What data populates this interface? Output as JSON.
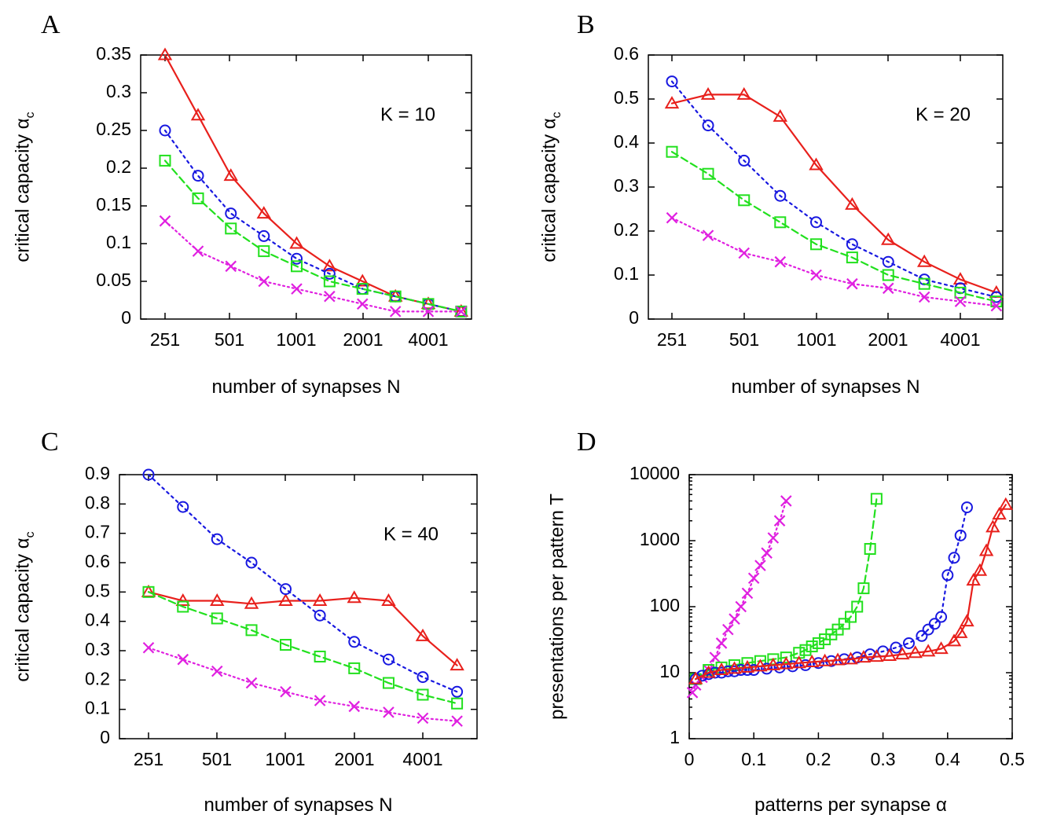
{
  "chart_data": [
    {
      "panel": "A",
      "type": "line",
      "annotation": "K = 10",
      "xlabel": "number of synapses N",
      "ylabel": "critical capacity α",
      "ylabel_sub": "c",
      "x_ticks": [
        "251",
        "501",
        "1001",
        "2001",
        "4001"
      ],
      "y_ticks": [
        "0",
        "0.05",
        "0.1",
        "0.15",
        "0.2",
        "0.25",
        "0.3",
        "0.35"
      ],
      "x": [
        251,
        355,
        501,
        709,
        1001,
        1415,
        2001,
        2831,
        4001,
        5657
      ],
      "ylim": [
        0,
        0.35
      ],
      "series": [
        {
          "color": "#e8201c",
          "marker": "triangle",
          "values": [
            0.35,
            0.27,
            0.19,
            0.14,
            0.1,
            0.07,
            0.05,
            0.03,
            0.02,
            0.01
          ]
        },
        {
          "color": "#1818e0",
          "marker": "circle",
          "values": [
            0.25,
            0.19,
            0.14,
            0.11,
            0.08,
            0.06,
            0.04,
            0.03,
            0.02,
            0.01
          ]
        },
        {
          "color": "#22e01e",
          "marker": "square",
          "values": [
            0.21,
            0.16,
            0.12,
            0.09,
            0.07,
            0.05,
            0.04,
            0.03,
            0.02,
            0.01
          ]
        },
        {
          "color": "#e020e0",
          "marker": "x",
          "values": [
            0.13,
            0.09,
            0.07,
            0.05,
            0.04,
            0.03,
            0.02,
            0.01,
            0.01,
            0.01
          ]
        }
      ]
    },
    {
      "panel": "B",
      "type": "line",
      "annotation": "K = 20",
      "xlabel": "number of synapses N",
      "ylabel": "critical capacity α",
      "ylabel_sub": "c",
      "x_ticks": [
        "251",
        "501",
        "1001",
        "2001",
        "4001"
      ],
      "y_ticks": [
        "0",
        "0.1",
        "0.2",
        "0.3",
        "0.4",
        "0.5",
        "0.6"
      ],
      "x": [
        251,
        355,
        501,
        709,
        1001,
        1415,
        2001,
        2831,
        4001,
        5657
      ],
      "ylim": [
        0,
        0.6
      ],
      "series": [
        {
          "color": "#e8201c",
          "marker": "triangle",
          "values": [
            0.49,
            0.51,
            0.51,
            0.46,
            0.35,
            0.26,
            0.18,
            0.13,
            0.09,
            0.06
          ]
        },
        {
          "color": "#1818e0",
          "marker": "circle",
          "values": [
            0.54,
            0.44,
            0.36,
            0.28,
            0.22,
            0.17,
            0.13,
            0.09,
            0.07,
            0.05
          ]
        },
        {
          "color": "#22e01e",
          "marker": "square",
          "values": [
            0.38,
            0.33,
            0.27,
            0.22,
            0.17,
            0.14,
            0.1,
            0.08,
            0.06,
            0.04
          ]
        },
        {
          "color": "#e020e0",
          "marker": "x",
          "values": [
            0.23,
            0.19,
            0.15,
            0.13,
            0.1,
            0.08,
            0.07,
            0.05,
            0.04,
            0.03
          ]
        }
      ]
    },
    {
      "panel": "C",
      "type": "line",
      "annotation": "K = 40",
      "xlabel": "number of synapses N",
      "ylabel": "critical capacity α",
      "ylabel_sub": "c",
      "x_ticks": [
        "251",
        "501",
        "1001",
        "2001",
        "4001"
      ],
      "y_ticks": [
        "0",
        "0.1",
        "0.2",
        "0.3",
        "0.4",
        "0.5",
        "0.6",
        "0.7",
        "0.8",
        "0.9"
      ],
      "x": [
        251,
        355,
        501,
        709,
        1001,
        1415,
        2001,
        2831,
        4001,
        5657
      ],
      "ylim": [
        0,
        0.9
      ],
      "series": [
        {
          "color": "#e8201c",
          "marker": "triangle",
          "values": [
            0.5,
            0.47,
            0.47,
            0.46,
            0.47,
            0.47,
            0.48,
            0.47,
            0.35,
            0.25
          ]
        },
        {
          "color": "#1818e0",
          "marker": "circle",
          "values": [
            0.9,
            0.79,
            0.68,
            0.6,
            0.51,
            0.42,
            0.33,
            0.27,
            0.21,
            0.16
          ]
        },
        {
          "color": "#22e01e",
          "marker": "square",
          "values": [
            0.5,
            0.45,
            0.41,
            0.37,
            0.32,
            0.28,
            0.24,
            0.19,
            0.15,
            0.12
          ]
        },
        {
          "color": "#e020e0",
          "marker": "x",
          "values": [
            0.31,
            0.27,
            0.23,
            0.19,
            0.16,
            0.13,
            0.11,
            0.09,
            0.07,
            0.06
          ]
        }
      ]
    },
    {
      "panel": "D",
      "type": "line",
      "yscale": "log",
      "xlabel": "patterns per synapse α",
      "ylabel": "presentations per pattern T",
      "x_ticks": [
        "0",
        "0.1",
        "0.2",
        "0.3",
        "0.4",
        "0.5"
      ],
      "y_ticks": [
        "1",
        "10",
        "100",
        "1000",
        "10000"
      ],
      "xlim": [
        0,
        0.5
      ],
      "ylim": [
        1,
        10000
      ],
      "series": [
        {
          "color": "#e020e0",
          "marker": "x",
          "x": [
            0.005,
            0.01,
            0.02,
            0.03,
            0.04,
            0.05,
            0.06,
            0.07,
            0.08,
            0.09,
            0.1,
            0.11,
            0.12,
            0.13,
            0.14,
            0.15
          ],
          "values": [
            5,
            6.5,
            8.5,
            11,
            17,
            28,
            45,
            65,
            100,
            160,
            270,
            420,
            650,
            1100,
            2000,
            4000
          ]
        },
        {
          "color": "#22e01e",
          "marker": "square",
          "x": [
            0.01,
            0.03,
            0.05,
            0.07,
            0.09,
            0.11,
            0.13,
            0.15,
            0.17,
            0.18,
            0.19,
            0.2,
            0.21,
            0.22,
            0.23,
            0.24,
            0.25,
            0.26,
            0.27,
            0.28,
            0.29
          ],
          "values": [
            8,
            11,
            12,
            13,
            14,
            15,
            16,
            17,
            20,
            22,
            25,
            28,
            32,
            38,
            45,
            55,
            70,
            100,
            190,
            750,
            4300
          ]
        },
        {
          "color": "#1818e0",
          "marker": "circle",
          "x": [
            0.01,
            0.02,
            0.03,
            0.04,
            0.05,
            0.06,
            0.07,
            0.08,
            0.09,
            0.1,
            0.12,
            0.14,
            0.16,
            0.18,
            0.2,
            0.22,
            0.24,
            0.26,
            0.28,
            0.3,
            0.32,
            0.34,
            0.36,
            0.37,
            0.38,
            0.39,
            0.4,
            0.41,
            0.42,
            0.43
          ],
          "values": [
            8,
            9,
            9.5,
            10,
            10,
            10.5,
            10.5,
            11,
            11,
            11,
            11.5,
            12,
            12.5,
            13,
            14,
            15,
            16,
            17,
            19,
            21,
            24,
            28,
            36,
            45,
            55,
            70,
            300,
            550,
            1200,
            3200
          ]
        },
        {
          "color": "#e8201c",
          "marker": "triangle",
          "x": [
            0.01,
            0.03,
            0.05,
            0.07,
            0.09,
            0.11,
            0.13,
            0.15,
            0.17,
            0.19,
            0.21,
            0.23,
            0.25,
            0.27,
            0.29,
            0.31,
            0.33,
            0.35,
            0.37,
            0.39,
            0.41,
            0.42,
            0.43,
            0.44,
            0.45,
            0.46,
            0.47,
            0.48,
            0.49
          ],
          "values": [
            8,
            10,
            11,
            11.5,
            12,
            12.5,
            13,
            13.5,
            14,
            14.5,
            15,
            15.5,
            16,
            17,
            17.5,
            18,
            19,
            20,
            21,
            23,
            30,
            40,
            60,
            250,
            350,
            700,
            1600,
            2500,
            3500
          ]
        }
      ]
    }
  ]
}
